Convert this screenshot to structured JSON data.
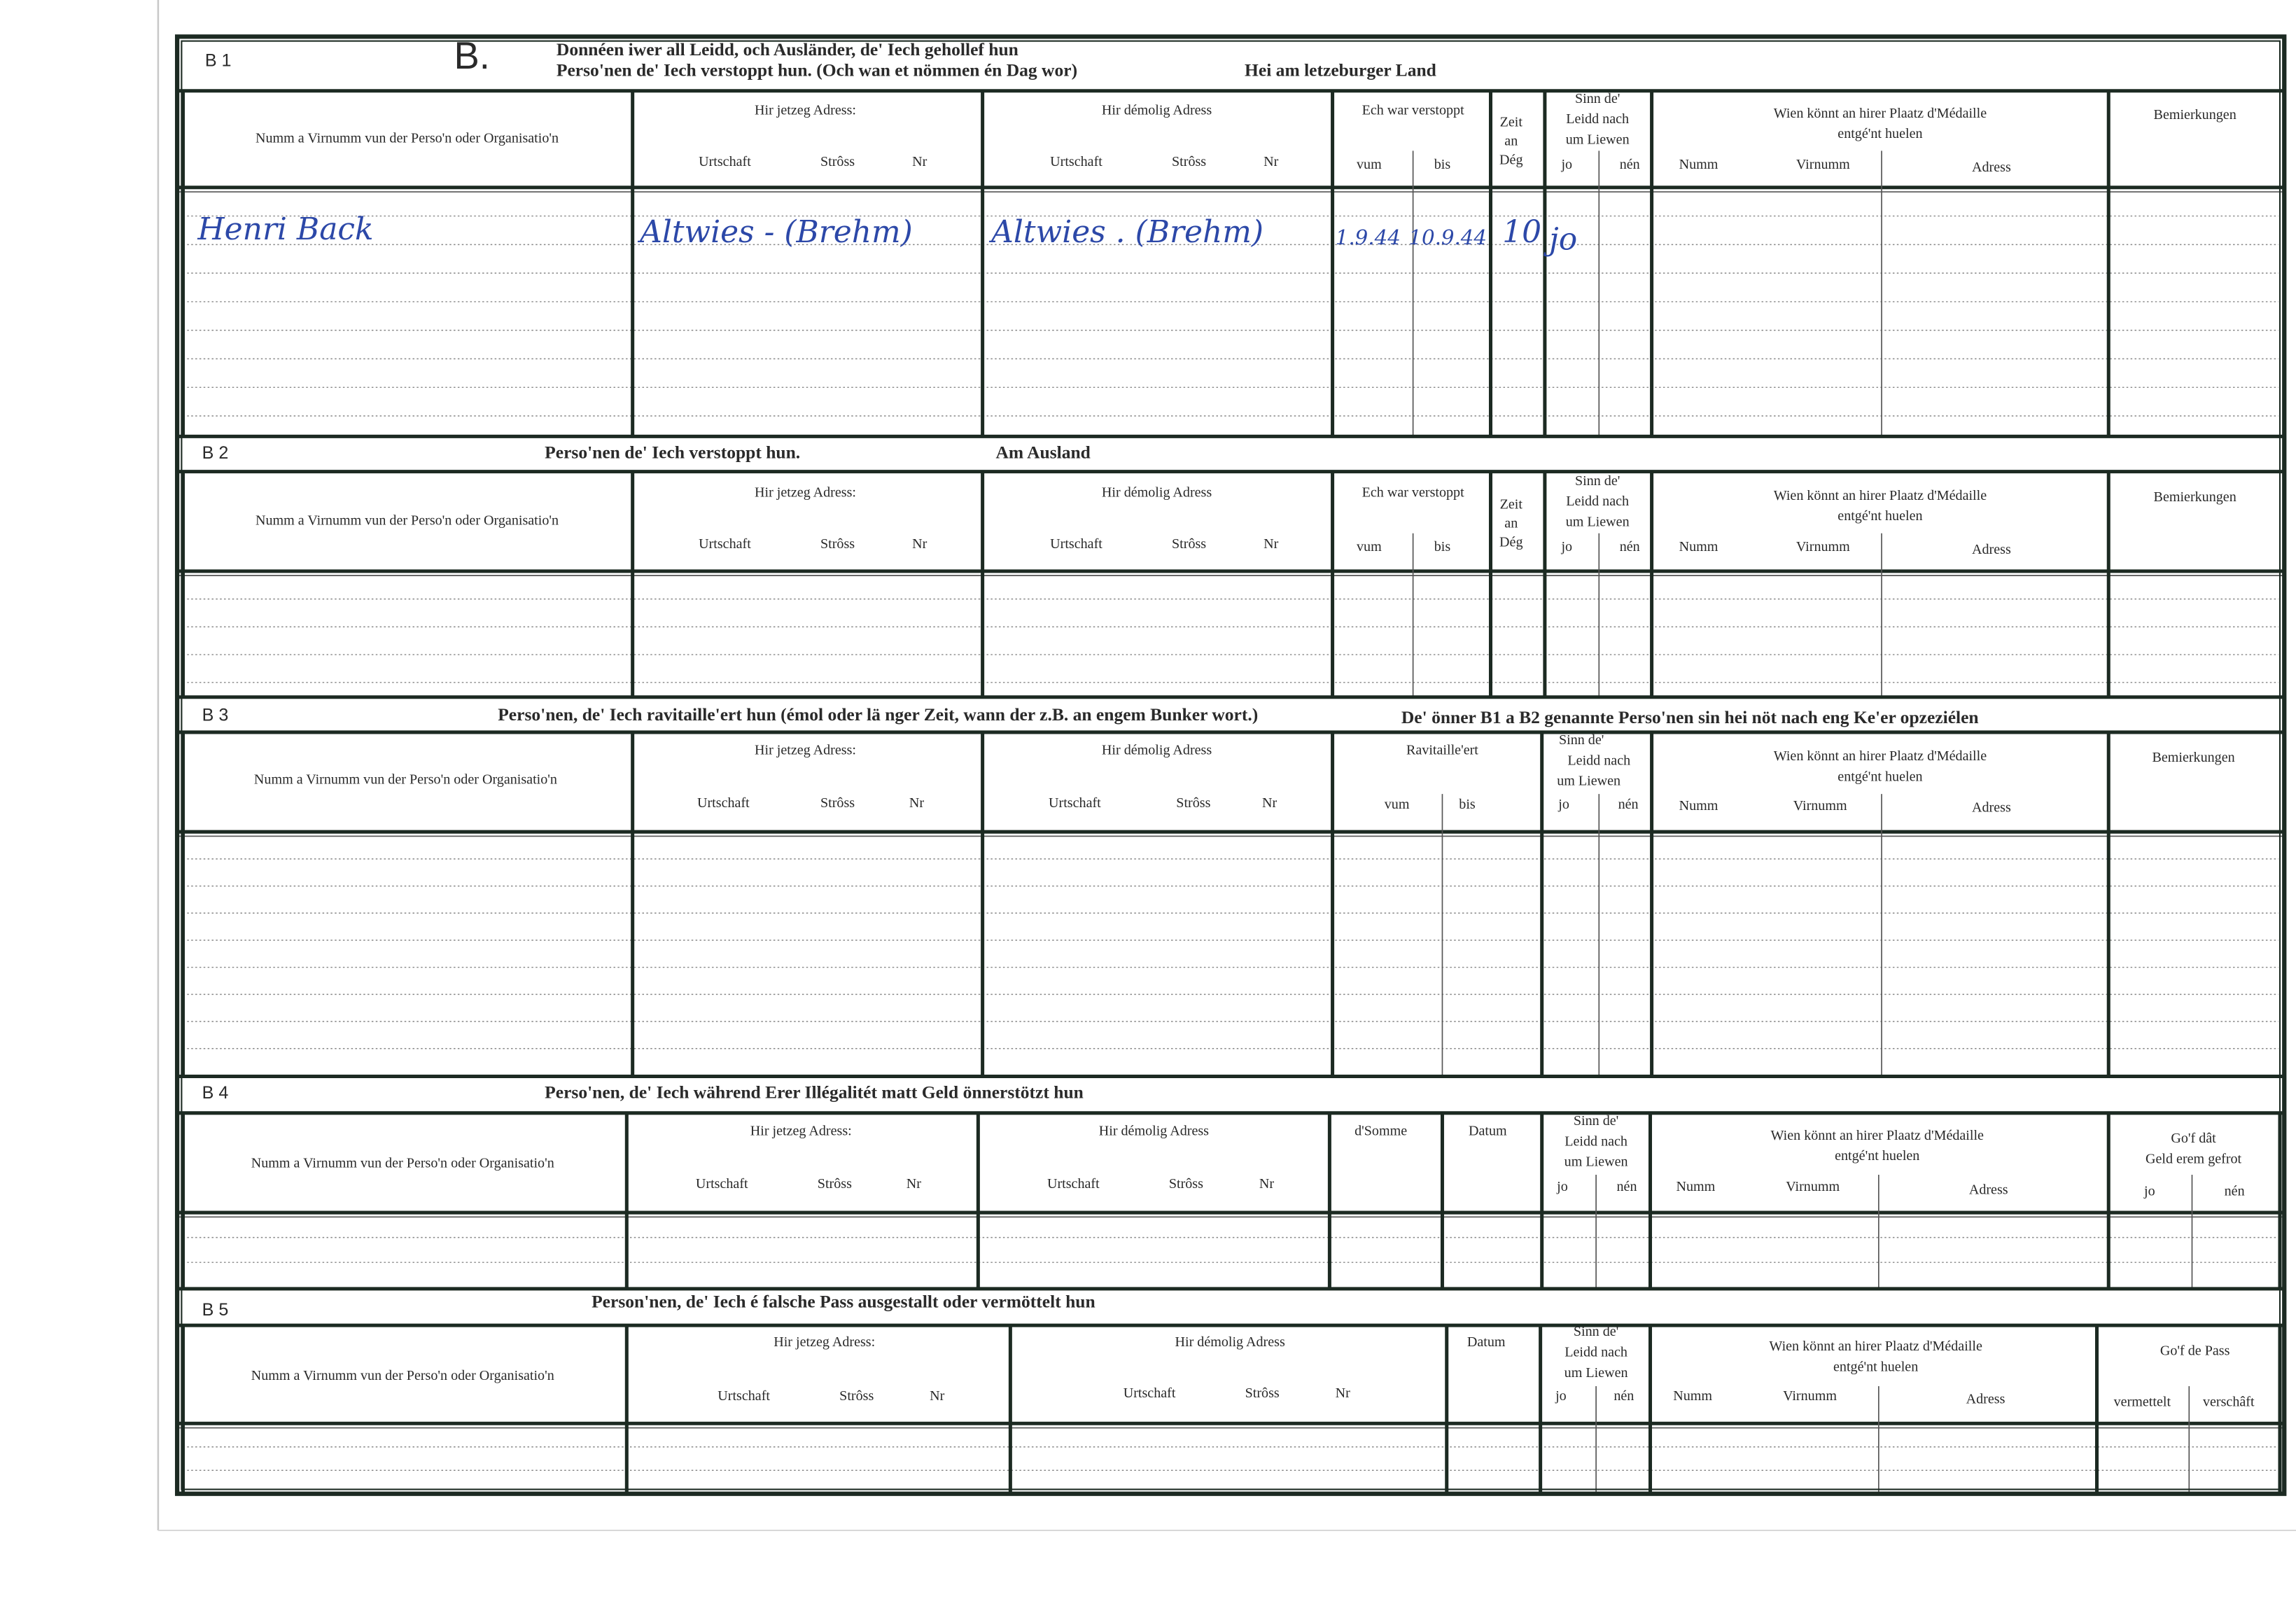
{
  "sections": [
    {
      "label": "B 1",
      "letter": "B.",
      "title": [
        "Donnéen iwer all Leidd, och Ausländer, de' Iech gehollef hun",
        "Perso'nen de' Iech verstoppt hun. (Och wan et nömmen én Dag wor)",
        "Hei am letzeburger Land"
      ],
      "headers": [
        "Numm a Virnumm vun der Perso'n oder Organisatio'n",
        "Hir jetzeg Adress:",
        "Urtschaft",
        "Strôss",
        "Nr",
        "Hir démolig Adress",
        "Urtschaft",
        "Strôss",
        "Nr",
        "Ech war verstoppt",
        "vum",
        "bis",
        "Zeit",
        "an",
        "Dég",
        "Sinn de'",
        "Leidd nach",
        "um Liewen",
        "jo",
        "nén",
        "Wien könnt an hirer Plaatz d'Médaille",
        "entgé'nt huelen",
        "Numm",
        "Virnumm",
        "Adress",
        "Bemierkungen"
      ],
      "entries": [
        "Henri Back",
        "Altwies - (Brehm)",
        "Altwies . (Brehm)",
        "1.9.44",
        "10.9.44",
        "10",
        "jo"
      ]
    },
    {
      "label": "B 2",
      "title": [
        "Perso'nen de' Iech verstoppt hun.",
        "Am Ausland"
      ],
      "headers": [
        "Numm a Virnumm vun der Perso'n oder Organisatio'n",
        "Hir jetzeg Adress:",
        "Urtschaft",
        "Strôss",
        "Nr",
        "Hir démolig Adress",
        "Urtschaft",
        "Strôss",
        "Nr",
        "Ech war verstoppt",
        "vum",
        "bis",
        "Zeit",
        "an",
        "Dég",
        "Sinn de'",
        "Leidd nach",
        "um Liewen",
        "jo",
        "nén",
        "Wien könnt an hirer Plaatz d'Médaille",
        "entgé'nt huelen",
        "Numm",
        "Virnumm",
        "Adress",
        "Bemierkungen"
      ]
    },
    {
      "label": "B 3",
      "title": [
        "Perso'nen, de' Iech ravitaille'ert hun (émol oder lä nger Zeit, wann der z.B. an engem Bunker wort.)",
        "De' önner B1 a B2 genannte Perso'nen sin hei nöt nach eng Ke'er opzeziélen"
      ],
      "headers": [
        "Numm a Virnumm vun der Perso'n oder Organisatio'n",
        "Hir jetzeg Adress:",
        "Urtschaft",
        "Strôss",
        "Nr",
        "Hir démolig Adress",
        "Urtschaft",
        "Strôss",
        "Nr",
        "Ravitaille'ert",
        "vum",
        "bis",
        "Sinn de'",
        "Leidd nach",
        "um Liewen",
        "jo",
        "nén",
        "Wien könnt an hirer Plaatz d'Médaille",
        "entgé'nt huelen",
        "Numm",
        "Virnumm",
        "Adress",
        "Bemierkungen"
      ]
    },
    {
      "label": "B 4",
      "title": [
        "Perso'nen, de' Iech während Erer Illégalitét matt Geld önnerstötzt hun"
      ],
      "headers": [
        "Numm a Virnumm vun der Perso'n oder Organisatio'n",
        "Hir jetzeg Adress:",
        "Urtschaft",
        "Strôss",
        "Nr",
        "Hir démolig Adress",
        "Urtschaft",
        "Strôss",
        "Nr",
        "d'Somme",
        "Datum",
        "Sinn de'",
        "Leidd nach",
        "um Liewen",
        "jo",
        "nén",
        "Wien könnt an hirer Plaatz d'Médaille",
        "entgé'nt huelen",
        "Numm",
        "Virnumm",
        "Adress",
        "Go'f dât",
        "Geld erem gefrot",
        "jo",
        "nén"
      ]
    },
    {
      "label": "B 5",
      "title": [
        "Person'nen, de' Iech é falsche Pass ausgestallt oder vermöttelt hun"
      ],
      "headers": [
        "Numm a Virnumm vun der Perso'n oder Organisatio'n",
        "Hir jetzeg Adress:",
        "Urtschaft",
        "Strôss",
        "Nr",
        "Hir démolig Adress",
        "Urtschaft",
        "Strôss",
        "Nr",
        "Datum",
        "Sinn de'",
        "Leidd nach",
        "um Liewen",
        "jo",
        "nén",
        "Wien könnt an hirer Plaatz d'Médaille",
        "entgé'nt huelen",
        "Numm",
        "Virnumm",
        "Adress",
        "Go'f de Pass",
        "vermettelt",
        "verschâft"
      ]
    }
  ]
}
